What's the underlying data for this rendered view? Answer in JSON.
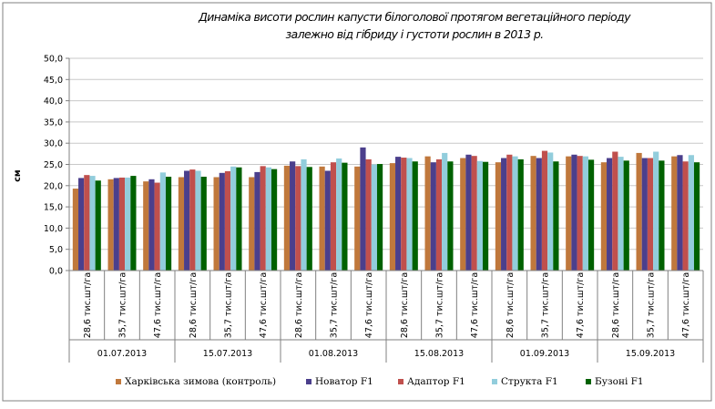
{
  "chart_data": {
    "type": "bar",
    "title": "Динаміка висоти рослин капусти білоголової протягом вегетаційного періоду залежно від гібриду і густоти рослин в 2013 р.",
    "title_lines": [
      "Динаміка висоти рослин капусти білоголової протягом вегетаційного періоду",
      "залежно від гібриду і густоти рослин в 2013 р."
    ],
    "ylabel": "см",
    "ylim": [
      0,
      50
    ],
    "ytick_step": 5,
    "ytick_labels": [
      "0,0",
      "5,0",
      "10,0",
      "15,0",
      "20,0",
      "25,0",
      "30,0",
      "35,0",
      "40,0",
      "45,0",
      "50,0"
    ],
    "grid": true,
    "legend_position": "bottom",
    "date_groups": [
      "01.07.2013",
      "15.07.2013",
      "01.08.2013",
      "15.08.2013",
      "01.09.2013",
      "15.09.2013"
    ],
    "densities": [
      "28,6 тис.шт/га",
      "35,7 тис.шт/га",
      "47,6 тис.шт/га"
    ],
    "categories": [
      "28,6 тис.шт/га",
      "35,7 тис.шт/га",
      "47,6 тис.шт/га",
      "28,6 тис.шт/га",
      "35,7 тис.шт/га",
      "47,6 тис.шт/га",
      "28,6 тис.шт/га",
      "35,7 тис.шт/га",
      "47,6 тис.шт/га",
      "28,6 тис.шт/га",
      "35,7 тис.шт/га",
      "47,6 тис.шт/га",
      "28,6 тис.шт/га",
      "35,7 тис.шт/га",
      "47,6 тис.шт/га",
      "28,6 тис.шт/га",
      "35,7 тис.шт/га",
      "47,6 тис.шт/га"
    ],
    "series": [
      {
        "name": "Харківська зимова (контроль)",
        "color": "#c0783c",
        "values": [
          19.3,
          21.5,
          21.0,
          22.0,
          22.0,
          22.0,
          24.7,
          24.5,
          24.5,
          25.3,
          26.9,
          26.5,
          25.5,
          27.0,
          26.9,
          25.5,
          27.7,
          26.9
        ]
      },
      {
        "name": "Новатор F1",
        "color": "#4b3f8c",
        "values": [
          21.8,
          21.8,
          21.5,
          23.5,
          23.0,
          23.2,
          25.7,
          23.5,
          29.0,
          26.8,
          25.5,
          27.3,
          26.5,
          26.5,
          27.3,
          26.5,
          26.5,
          27.2
        ]
      },
      {
        "name": "Адаптор  F1",
        "color": "#c0504d",
        "values": [
          22.5,
          21.9,
          20.7,
          23.8,
          23.4,
          24.6,
          24.6,
          25.5,
          26.2,
          26.6,
          26.2,
          27.0,
          27.3,
          28.2,
          27.0,
          28.0,
          26.5,
          25.7
        ]
      },
      {
        "name": "Структа F1",
        "color": "#92cddc",
        "values": [
          22.3,
          21.9,
          23.1,
          23.5,
          24.5,
          24.3,
          26.2,
          26.4,
          25.0,
          26.5,
          27.7,
          25.8,
          26.9,
          27.8,
          26.9,
          26.8,
          28.0,
          27.2
        ]
      },
      {
        "name": "Бузоні F1",
        "color": "#006100",
        "values": [
          21.2,
          22.3,
          22.1,
          22.1,
          24.3,
          23.9,
          24.4,
          25.4,
          25.1,
          25.7,
          25.7,
          25.6,
          26.2,
          25.7,
          26.1,
          25.9,
          25.9,
          25.5
        ]
      }
    ]
  }
}
